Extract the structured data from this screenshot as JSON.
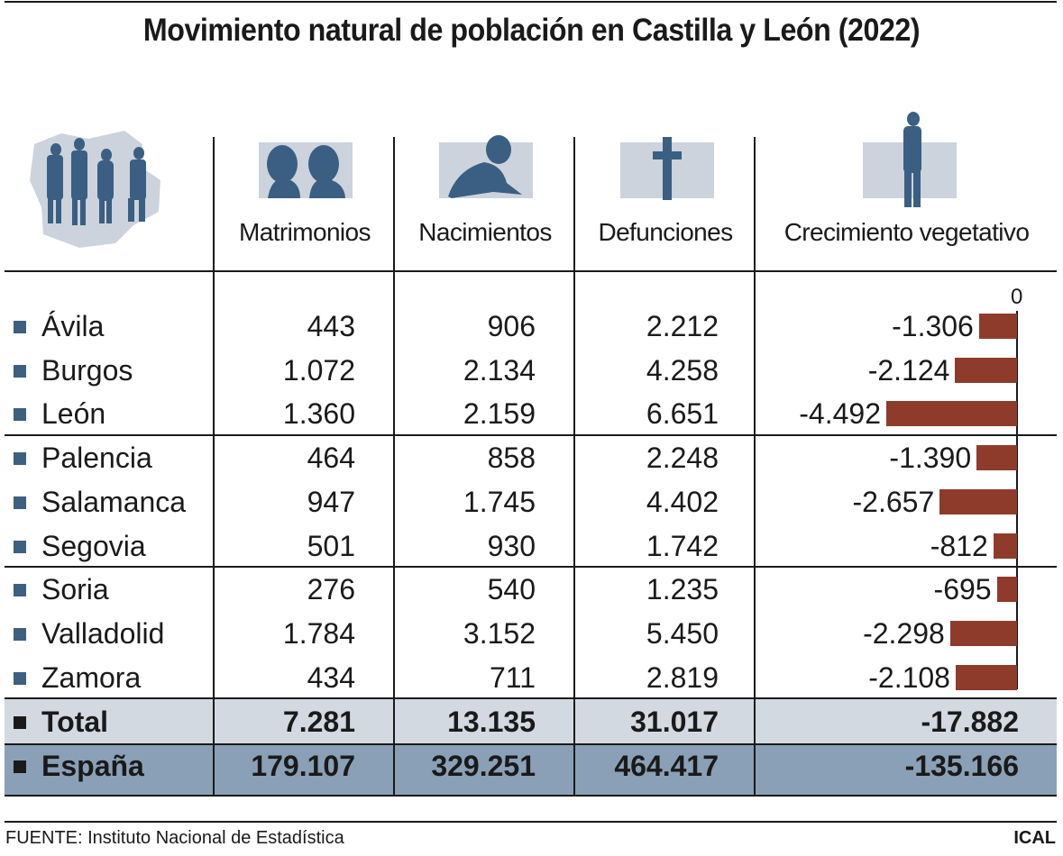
{
  "title": "Movimiento natural de población en Castilla y León (2022)",
  "columns": [
    "Matrimonios",
    "Nacimientos",
    "Defunciones",
    "Crecimiento vegetativo"
  ],
  "icons": [
    "people-on-map-icon",
    "couple-icon",
    "baby-icon",
    "cross-icon",
    "elderly-person-icon"
  ],
  "colors": {
    "bar": "#8f3b2b",
    "marker": "#3f5f80",
    "total_bg": "#d3d9e1",
    "spain_bg": "#8aa0b6",
    "icon_bg": "#ccd3dc",
    "icon_fg": "#3a5f82"
  },
  "rows": [
    {
      "name": "Ávila",
      "matrimonios": "443",
      "nacimientos": "906",
      "defunciones": "2.212",
      "crecimiento": "-1.306"
    },
    {
      "name": "Burgos",
      "matrimonios": "1.072",
      "nacimientos": "2.134",
      "defunciones": "4.258",
      "crecimiento": "-2.124"
    },
    {
      "name": "León",
      "matrimonios": "1.360",
      "nacimientos": "2.159",
      "defunciones": "6.651",
      "crecimiento": "-4.492"
    },
    {
      "name": "Palencia",
      "matrimonios": "464",
      "nacimientos": "858",
      "defunciones": "2.248",
      "crecimiento": "-1.390"
    },
    {
      "name": "Salamanca",
      "matrimonios": "947",
      "nacimientos": "1.745",
      "defunciones": "4.402",
      "crecimiento": "-2.657"
    },
    {
      "name": "Segovia",
      "matrimonios": "501",
      "nacimientos": "930",
      "defunciones": "1.742",
      "crecimiento": "-812"
    },
    {
      "name": "Soria",
      "matrimonios": "276",
      "nacimientos": "540",
      "defunciones": "1.235",
      "crecimiento": "-695"
    },
    {
      "name": "Valladolid",
      "matrimonios": "1.784",
      "nacimientos": "3.152",
      "defunciones": "5.450",
      "crecimiento": "-2.298"
    },
    {
      "name": "Zamora",
      "matrimonios": "434",
      "nacimientos": "711",
      "defunciones": "2.819",
      "crecimiento": "-2.108"
    }
  ],
  "totals": [
    {
      "name": "Total",
      "matrimonios": "7.281",
      "nacimientos": "13.135",
      "defunciones": "31.017",
      "crecimiento": "-17.882"
    },
    {
      "name": "España",
      "matrimonios": "179.107",
      "nacimientos": "329.251",
      "defunciones": "464.417",
      "crecimiento": "-135.166"
    }
  ],
  "chart_data": {
    "type": "bar",
    "orientation": "horizontal",
    "categories": [
      "Ávila",
      "Burgos",
      "León",
      "Palencia",
      "Salamanca",
      "Segovia",
      "Soria",
      "Valladolid",
      "Zamora"
    ],
    "values": [
      -1306,
      -2124,
      -4492,
      -1390,
      -2657,
      -812,
      -695,
      -2298,
      -2108
    ],
    "axis_label": "0",
    "xlim": [
      -4492,
      0
    ]
  },
  "footer": {
    "source": "FUENTE: Instituto Nacional de Estadística",
    "brand": "ICAL"
  }
}
